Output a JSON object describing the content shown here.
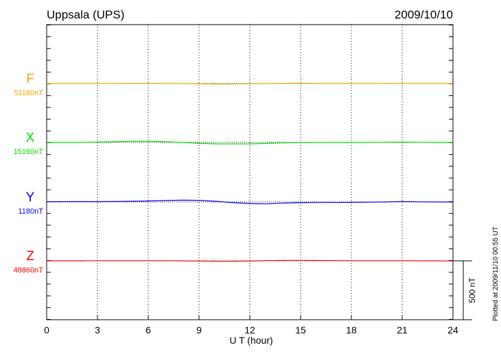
{
  "chart_data": {
    "type": "line",
    "title": "Uppsala (UPS)",
    "date": "2009/10/10",
    "xlabel": "U T (hour)",
    "xlim": [
      0,
      24
    ],
    "xticks": [
      0,
      3,
      6,
      9,
      12,
      15,
      18,
      21,
      24
    ],
    "grid": "dotted vertical every 3 hours, dotted baseline per component",
    "scale_bar": "500 nT",
    "footnote": "Plotted at 2009/11/10 00:55 UT",
    "x": [
      0,
      1,
      2,
      3,
      4,
      5,
      6,
      7,
      8,
      9,
      10,
      11,
      12,
      13,
      14,
      15,
      16,
      17,
      18,
      19,
      20,
      21,
      22,
      23,
      24
    ],
    "series": [
      {
        "name": "F",
        "baseline_label": "51180nT",
        "color": "#f0a800",
        "values": [
          0,
          0,
          0,
          0,
          1,
          1,
          2,
          1,
          0,
          -3,
          -5,
          -4,
          -2,
          0,
          2,
          3,
          1,
          0,
          0,
          0,
          1,
          1,
          0,
          0,
          0
        ]
      },
      {
        "name": "X",
        "baseline_label": "15160nT",
        "color": "#00e000",
        "values": [
          0,
          0,
          0,
          3,
          6,
          10,
          10,
          6,
          0,
          -8,
          -12,
          -13,
          -12,
          -8,
          -4,
          -2,
          -1,
          0,
          0,
          0,
          1,
          3,
          1,
          0,
          0
        ]
      },
      {
        "name": "Y",
        "baseline_label": "1180nT",
        "color": "#0000ff",
        "values": [
          2,
          3,
          3,
          3,
          4,
          6,
          8,
          12,
          15,
          14,
          6,
          -6,
          -14,
          -16,
          -10,
          -6,
          -4,
          -4,
          -3,
          -2,
          0,
          4,
          1,
          0,
          0
        ]
      },
      {
        "name": "Z",
        "baseline_label": "48860nT",
        "color": "#ff0000",
        "values": [
          0,
          0,
          0,
          1,
          1,
          1,
          1,
          1,
          0,
          -2,
          -4,
          -4,
          -2,
          2,
          4,
          4,
          3,
          2,
          1,
          1,
          1,
          1,
          0,
          0,
          -1
        ]
      }
    ]
  }
}
